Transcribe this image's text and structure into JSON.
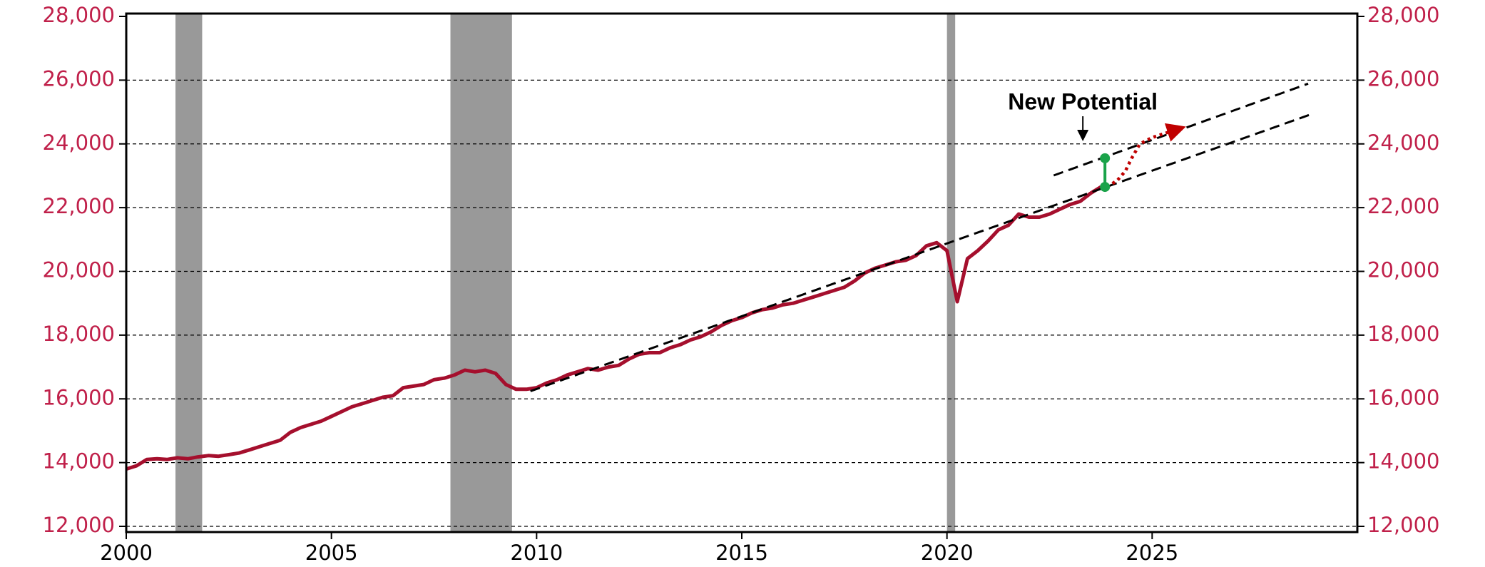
{
  "chart_data": {
    "type": "line",
    "annotations": [
      "New Potential"
    ],
    "xlim": [
      2000,
      2030
    ],
    "xticks": [
      2000,
      2005,
      2010,
      2015,
      2020,
      2025
    ],
    "ylim": [
      12000,
      28000
    ],
    "yticks": [
      {
        "value": 12000,
        "label": "12,000"
      },
      {
        "value": 14000,
        "label": "14,000"
      },
      {
        "value": 16000,
        "label": "16,000"
      },
      {
        "value": 18000,
        "label": "18,000"
      },
      {
        "value": 20000,
        "label": "20,000"
      },
      {
        "value": 22000,
        "label": "22,000"
      },
      {
        "value": 24000,
        "label": "24,000"
      },
      {
        "value": 26000,
        "label": "26,000"
      },
      {
        "value": 28000,
        "label": "28,000"
      }
    ],
    "y2lim": [
      12000,
      28000
    ],
    "y2ticks": [
      {
        "value": 12000,
        "label": "12,000"
      },
      {
        "value": 14000,
        "label": "14,000"
      },
      {
        "value": 16000,
        "label": "16,000"
      },
      {
        "value": 18000,
        "label": "18,000"
      },
      {
        "value": 20000,
        "label": "20,000"
      },
      {
        "value": 22000,
        "label": "22,000"
      },
      {
        "value": 24000,
        "label": "24,000"
      },
      {
        "value": 26000,
        "label": "26,000"
      },
      {
        "value": 28000,
        "label": "28,000"
      }
    ],
    "grid": true,
    "shaded_regions": {
      "color": "#999999",
      "spans": [
        [
          2001.2,
          2001.85
        ],
        [
          2007.9,
          2009.4
        ],
        [
          2020.0,
          2020.2
        ]
      ]
    },
    "series": [
      {
        "color": "#a50f2d",
        "style": "solid",
        "x": [
          2000,
          2000.25,
          2000.5,
          2000.75,
          2001,
          2001.25,
          2001.5,
          2001.75,
          2002,
          2002.25,
          2002.5,
          2002.75,
          2003,
          2003.25,
          2003.5,
          2003.75,
          2004,
          2004.25,
          2004.5,
          2004.75,
          2005,
          2005.25,
          2005.5,
          2005.75,
          2006,
          2006.25,
          2006.5,
          2006.75,
          2007,
          2007.25,
          2007.5,
          2007.75,
          2008,
          2008.25,
          2008.5,
          2008.75,
          2009,
          2009.25,
          2009.5,
          2009.75,
          2010,
          2010.25,
          2010.5,
          2010.75,
          2011,
          2011.25,
          2011.5,
          2011.75,
          2012,
          2012.25,
          2012.5,
          2012.75,
          2013,
          2013.25,
          2013.5,
          2013.75,
          2014,
          2014.25,
          2014.5,
          2014.75,
          2015,
          2015.25,
          2015.5,
          2015.75,
          2016,
          2016.25,
          2016.5,
          2016.75,
          2017,
          2017.25,
          2017.5,
          2017.75,
          2018,
          2018.25,
          2018.5,
          2018.75,
          2019,
          2019.25,
          2019.5,
          2019.75,
          2020,
          2020.25,
          2020.5,
          2020.75,
          2021,
          2021.25,
          2021.5,
          2021.75,
          2022,
          2022.25,
          2022.5,
          2022.75,
          2023,
          2023.25,
          2023.5,
          2023.75
        ],
        "values": [
          13800,
          13900,
          14100,
          14120,
          14100,
          14150,
          14120,
          14180,
          14220,
          14200,
          14250,
          14300,
          14400,
          14500,
          14600,
          14700,
          14950,
          15100,
          15200,
          15300,
          15450,
          15600,
          15750,
          15850,
          15950,
          16050,
          16100,
          16350,
          16400,
          16450,
          16600,
          16650,
          16750,
          16900,
          16850,
          16900,
          16800,
          16450,
          16300,
          16300,
          16350,
          16500,
          16600,
          16750,
          16850,
          16950,
          16900,
          17000,
          17050,
          17250,
          17400,
          17450,
          17450,
          17600,
          17700,
          17850,
          17950,
          18100,
          18300,
          18450,
          18550,
          18700,
          18800,
          18850,
          18950,
          19000,
          19100,
          19200,
          19300,
          19400,
          19500,
          19700,
          19950,
          20100,
          20200,
          20300,
          20350,
          20500,
          20800,
          20900,
          20650,
          19050,
          20400,
          20650,
          20950,
          21300,
          21450,
          21800,
          21700,
          21700,
          21800,
          21950,
          22100,
          22200,
          22450,
          22650
        ]
      },
      {
        "color": "#000000",
        "style": "dashed",
        "x": [
          2009.85,
          2028.9
        ],
        "values": [
          16240,
          24940
        ]
      },
      {
        "color": "#000000",
        "style": "dashed",
        "x": [
          2022.6,
          2028.8
        ],
        "values": [
          23010,
          25890
        ]
      },
      {
        "color": "#c00000",
        "style": "dotted",
        "x": [
          2023.9,
          2024.15,
          2024.35,
          2024.5,
          2024.7,
          2025.0,
          2025.6
        ],
        "values": [
          22650,
          22850,
          23150,
          23550,
          24000,
          24200,
          24450
        ]
      }
    ],
    "gap": {
      "color": "#1aa34a",
      "x": 2023.85,
      "values": [
        22650,
        23550
      ]
    }
  }
}
